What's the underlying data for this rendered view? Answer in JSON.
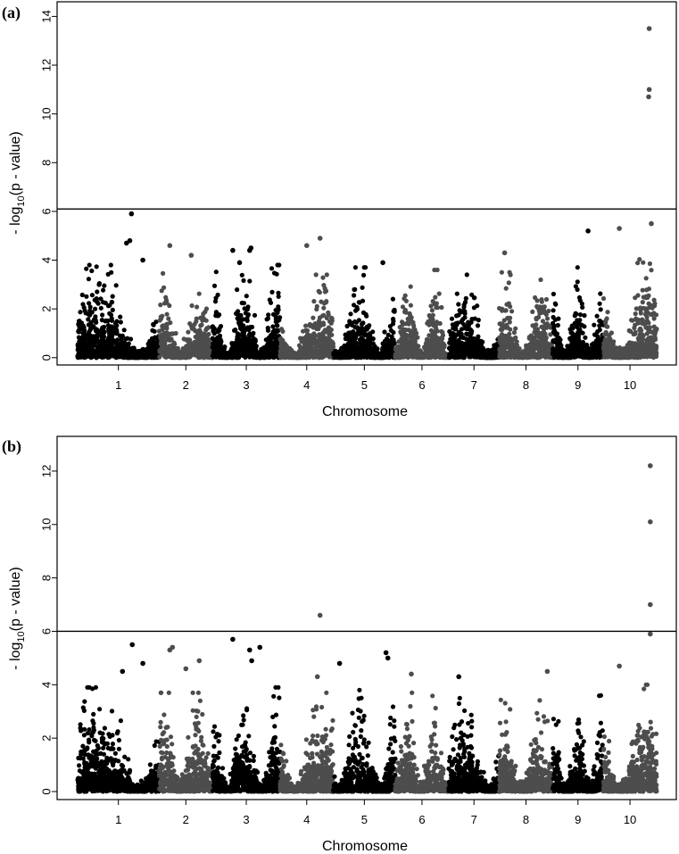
{
  "figure": {
    "colors": {
      "dark": "#000000",
      "light": "#4d4d4d",
      "axis": "#000000",
      "threshold": "#000000"
    }
  },
  "chart_data": [
    {
      "panel_label": "(a)",
      "type": "scatter",
      "subtype": "manhattan",
      "xlabel": "Chromosome",
      "ylabel": {
        "prefix": "- log",
        "sub": "10",
        "suffix": "(p - value)"
      },
      "categories": [
        "1",
        "2",
        "3",
        "4",
        "5",
        "6",
        "7",
        "8",
        "9",
        "10"
      ],
      "chromosome_widths": [
        1.45,
        0.95,
        1.2,
        0.95,
        1.1,
        0.95,
        0.9,
        0.95,
        0.9,
        0.95
      ],
      "ylim": [
        -0.3,
        14.6
      ],
      "yticks": [
        0,
        2,
        4,
        6,
        8,
        10,
        12,
        14
      ],
      "threshold": 6.1,
      "bulk_level": [
        2.9,
        2.6,
        2.9,
        2.5,
        2.8,
        2.7,
        2.5,
        2.6,
        2.8,
        3.2
      ],
      "hits": [
        {
          "chr": "1",
          "pos": 0.6,
          "y": 4.7
        },
        {
          "chr": "1",
          "pos": 0.64,
          "y": 4.8
        },
        {
          "chr": "1",
          "pos": 0.66,
          "y": 5.9
        },
        {
          "chr": "1",
          "pos": 0.8,
          "y": 4.0
        },
        {
          "chr": "2",
          "pos": 0.2,
          "y": 4.6
        },
        {
          "chr": "2",
          "pos": 0.6,
          "y": 4.2
        },
        {
          "chr": "3",
          "pos": 0.3,
          "y": 4.4
        },
        {
          "chr": "3",
          "pos": 0.55,
          "y": 4.4
        },
        {
          "chr": "3",
          "pos": 0.57,
          "y": 4.5
        },
        {
          "chr": "3",
          "pos": 0.4,
          "y": 3.9
        },
        {
          "chr": "4",
          "pos": 0.5,
          "y": 4.6
        },
        {
          "chr": "4",
          "pos": 0.75,
          "y": 4.9
        },
        {
          "chr": "5",
          "pos": 0.8,
          "y": 3.9
        },
        {
          "chr": "8",
          "pos": 0.1,
          "y": 4.3
        },
        {
          "chr": "9",
          "pos": 0.7,
          "y": 5.2
        },
        {
          "chr": "10",
          "pos": 0.3,
          "y": 5.3
        },
        {
          "chr": "10",
          "pos": 0.9,
          "y": 5.5
        },
        {
          "chr": "10",
          "pos": 0.85,
          "y": 10.7
        },
        {
          "chr": "10",
          "pos": 0.86,
          "y": 11.0
        },
        {
          "chr": "10",
          "pos": 0.86,
          "y": 13.5
        }
      ],
      "seed": 11
    },
    {
      "panel_label": "(b)",
      "type": "scatter",
      "subtype": "manhattan",
      "xlabel": "Chromosome",
      "ylabel": {
        "prefix": "- log",
        "sub": "10",
        "suffix": "(p - value)"
      },
      "categories": [
        "1",
        "2",
        "3",
        "4",
        "5",
        "6",
        "7",
        "8",
        "9",
        "10"
      ],
      "chromosome_widths": [
        1.45,
        0.95,
        1.2,
        0.95,
        1.1,
        0.95,
        0.9,
        0.95,
        0.9,
        0.95
      ],
      "ylim": [
        -0.3,
        13.3
      ],
      "yticks": [
        0,
        2,
        4,
        6,
        8,
        10,
        12
      ],
      "threshold": 6.0,
      "bulk_level": [
        3.0,
        2.8,
        3.0,
        2.8,
        2.9,
        2.8,
        2.6,
        2.6,
        2.7,
        3.1
      ],
      "hits": [
        {
          "chr": "1",
          "pos": 0.55,
          "y": 4.5
        },
        {
          "chr": "1",
          "pos": 0.67,
          "y": 5.5
        },
        {
          "chr": "1",
          "pos": 0.8,
          "y": 4.8
        },
        {
          "chr": "2",
          "pos": 0.2,
          "y": 5.3
        },
        {
          "chr": "2",
          "pos": 0.25,
          "y": 5.4
        },
        {
          "chr": "2",
          "pos": 0.5,
          "y": 4.6
        },
        {
          "chr": "2",
          "pos": 0.75,
          "y": 4.9
        },
        {
          "chr": "3",
          "pos": 0.3,
          "y": 5.7
        },
        {
          "chr": "3",
          "pos": 0.55,
          "y": 5.3
        },
        {
          "chr": "3",
          "pos": 0.58,
          "y": 4.9
        },
        {
          "chr": "3",
          "pos": 0.7,
          "y": 5.4
        },
        {
          "chr": "4",
          "pos": 0.7,
          "y": 4.3
        },
        {
          "chr": "4",
          "pos": 0.75,
          "y": 6.6
        },
        {
          "chr": "5",
          "pos": 0.1,
          "y": 4.8
        },
        {
          "chr": "5",
          "pos": 0.85,
          "y": 5.2
        },
        {
          "chr": "5",
          "pos": 0.88,
          "y": 5.0
        },
        {
          "chr": "6",
          "pos": 0.3,
          "y": 4.4
        },
        {
          "chr": "7",
          "pos": 0.2,
          "y": 4.3
        },
        {
          "chr": "8",
          "pos": 0.9,
          "y": 4.5
        },
        {
          "chr": "10",
          "pos": 0.3,
          "y": 4.7
        },
        {
          "chr": "10",
          "pos": 0.88,
          "y": 5.9
        },
        {
          "chr": "10",
          "pos": 0.88,
          "y": 7.0
        },
        {
          "chr": "10",
          "pos": 0.88,
          "y": 10.1
        },
        {
          "chr": "10",
          "pos": 0.88,
          "y": 12.2
        }
      ],
      "seed": 29
    }
  ]
}
